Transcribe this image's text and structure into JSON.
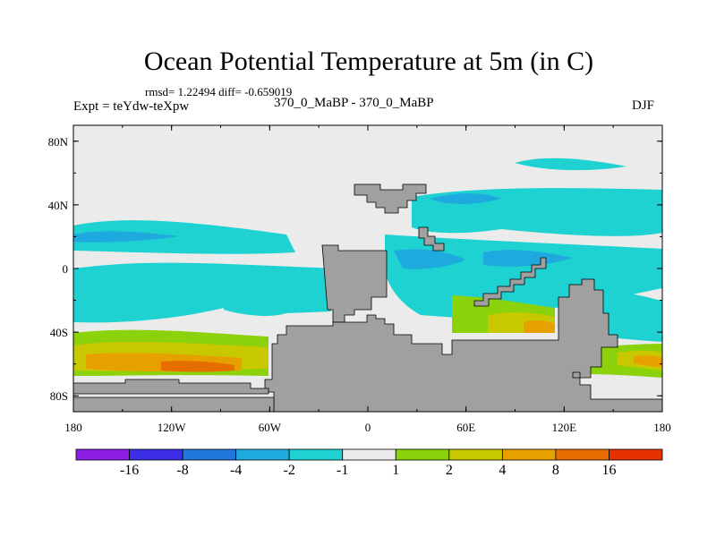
{
  "chart_data": {
    "type": "heatmap",
    "title": "Ocean Potential Temperature at 5m (in C)",
    "stats": "rmsd= 1.22494 diff= -0.659019",
    "left_label": "Expt = teYdw-teXpw",
    "center_label": "370_0_MaBP - 370_0_MaBP",
    "right_label": "DJF",
    "x_ticks": [
      "180",
      "120W",
      "60W",
      "0",
      "60E",
      "120E",
      "180"
    ],
    "y_ticks": [
      "80N",
      "40N",
      "0",
      "40S",
      "80S"
    ],
    "xlim": [
      -180,
      180
    ],
    "ylim": [
      -90,
      90
    ],
    "colorbar": {
      "levels": [
        "-16",
        "-8",
        "-4",
        "-2",
        "-1",
        "1",
        "2",
        "4",
        "8",
        "16"
      ],
      "colors": [
        "#8c1ee6",
        "#3b2ee6",
        "#1e78dc",
        "#1eaade",
        "#1ed2d2",
        "#ebebeb",
        "#8cd20a",
        "#c8c800",
        "#e6a000",
        "#e66e00",
        "#e63200"
      ]
    },
    "land_color": "#a0a0a0"
  }
}
